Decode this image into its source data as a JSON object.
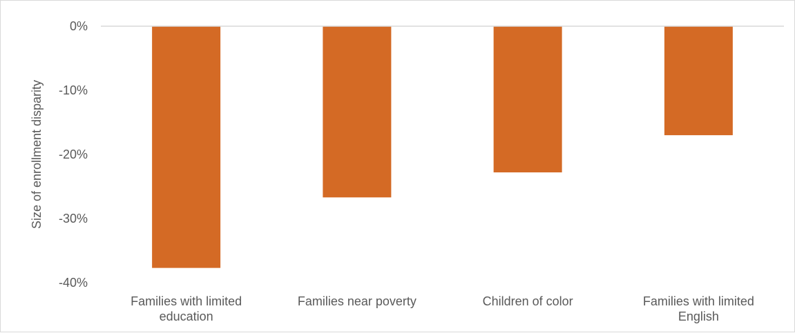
{
  "chart_data": {
    "type": "bar",
    "title": "",
    "xlabel": "",
    "ylabel": "Size of enrollment disparity",
    "categories": [
      [
        "Families with limited",
        "education"
      ],
      [
        "Families near poverty"
      ],
      [
        "Children of color"
      ],
      [
        "Families with limited",
        "English"
      ]
    ],
    "values": [
      -37.7,
      -26.7,
      -22.8,
      -17.0
    ],
    "ylim": [
      -40,
      0
    ],
    "yticks": [
      0,
      -10,
      -20,
      -30,
      -40
    ],
    "ytick_labels": [
      "0%",
      "-10%",
      "-20%",
      "-30%",
      "-40%"
    ],
    "bar_color": "#d46a25",
    "zero_line_color": "#d9d9d9",
    "grid": false,
    "legend": "none"
  }
}
